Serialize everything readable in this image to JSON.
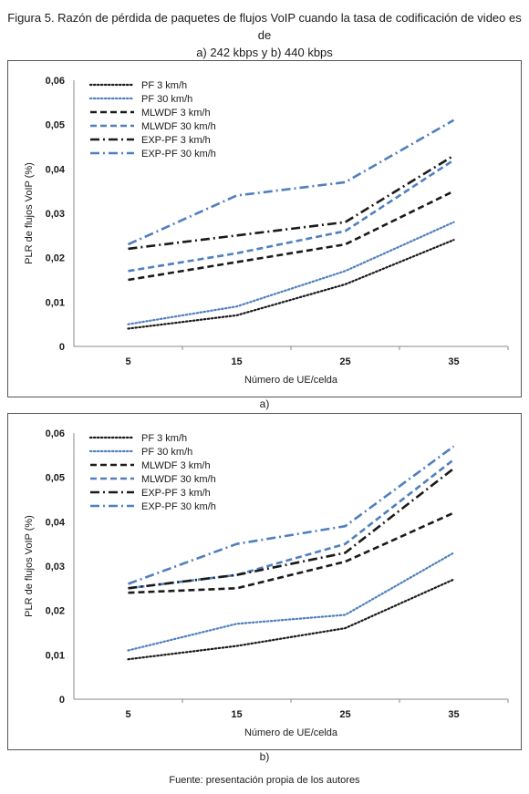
{
  "figure": {
    "title_line1": "Figura 5. Razón de pérdida de paquetes de flujos VoIP cuando la tasa de codificación de video es de",
    "title_line2": "a) 242 kbps y b) 440 kbps",
    "source": "Fuente: presentación propia de los autores"
  },
  "colors": {
    "black": "#1a1a1a",
    "blue": "#4f7fbf"
  },
  "chart_data": [
    {
      "type": "line",
      "panel_label": "a)",
      "xlabel": "Número de UE/celda",
      "ylabel": "PLR de flujos VoIP (%)",
      "categories": [
        "5",
        "15",
        "25",
        "35"
      ],
      "ylim": [
        0,
        0.06
      ],
      "yticks": [
        "0",
        "0,01",
        "0,02",
        "0,03",
        "0,04",
        "0,05",
        "0,06"
      ],
      "grid": false,
      "legend": "top-left",
      "series": [
        {
          "name": "PF 3 km/h",
          "values": [
            0.004,
            0.007,
            0.014,
            0.024
          ],
          "color": "#1a1a1a",
          "style": "dotted"
        },
        {
          "name": "PF 30 km/h",
          "values": [
            0.005,
            0.009,
            0.017,
            0.028
          ],
          "color": "#4f7fbf",
          "style": "dotted"
        },
        {
          "name": "MLWDF 3 km/h",
          "values": [
            0.015,
            0.019,
            0.023,
            0.035
          ],
          "color": "#1a1a1a",
          "style": "dashed"
        },
        {
          "name": "MLWDF 30 km/h",
          "values": [
            0.017,
            0.021,
            0.026,
            0.042
          ],
          "color": "#4f7fbf",
          "style": "dashed"
        },
        {
          "name": "EXP-PF 3 km/h",
          "values": [
            0.022,
            0.025,
            0.028,
            0.043
          ],
          "color": "#1a1a1a",
          "style": "dashdot"
        },
        {
          "name": "EXP-PF 30 km/h",
          "values": [
            0.023,
            0.034,
            0.037,
            0.051
          ],
          "color": "#4f7fbf",
          "style": "dashdot"
        }
      ]
    },
    {
      "type": "line",
      "panel_label": "b)",
      "xlabel": "Número de UE/celda",
      "ylabel": "PLR de flujos VoIP (%)",
      "categories": [
        "5",
        "15",
        "25",
        "35"
      ],
      "ylim": [
        0,
        0.06
      ],
      "yticks": [
        "0",
        "0,01",
        "0,02",
        "0,03",
        "0,04",
        "0,05",
        "0,06"
      ],
      "grid": false,
      "legend": "top-left",
      "series": [
        {
          "name": "PF 3 km/h",
          "values": [
            0.009,
            0.012,
            0.016,
            0.027
          ],
          "color": "#1a1a1a",
          "style": "dotted"
        },
        {
          "name": "PF 30 km/h",
          "values": [
            0.011,
            0.017,
            0.019,
            0.033
          ],
          "color": "#4f7fbf",
          "style": "dotted"
        },
        {
          "name": "MLWDF 3 km/h",
          "values": [
            0.024,
            0.025,
            0.031,
            0.042
          ],
          "color": "#1a1a1a",
          "style": "dashed"
        },
        {
          "name": "MLWDF 30 km/h",
          "values": [
            0.025,
            0.028,
            0.035,
            0.054
          ],
          "color": "#4f7fbf",
          "style": "dashed"
        },
        {
          "name": "EXP-PF 3 km/h",
          "values": [
            0.025,
            0.028,
            0.033,
            0.052
          ],
          "color": "#1a1a1a",
          "style": "dashdot"
        },
        {
          "name": "EXP-PF 30 km/h",
          "values": [
            0.026,
            0.035,
            0.039,
            0.057
          ],
          "color": "#4f7fbf",
          "style": "dashdot"
        }
      ]
    }
  ]
}
